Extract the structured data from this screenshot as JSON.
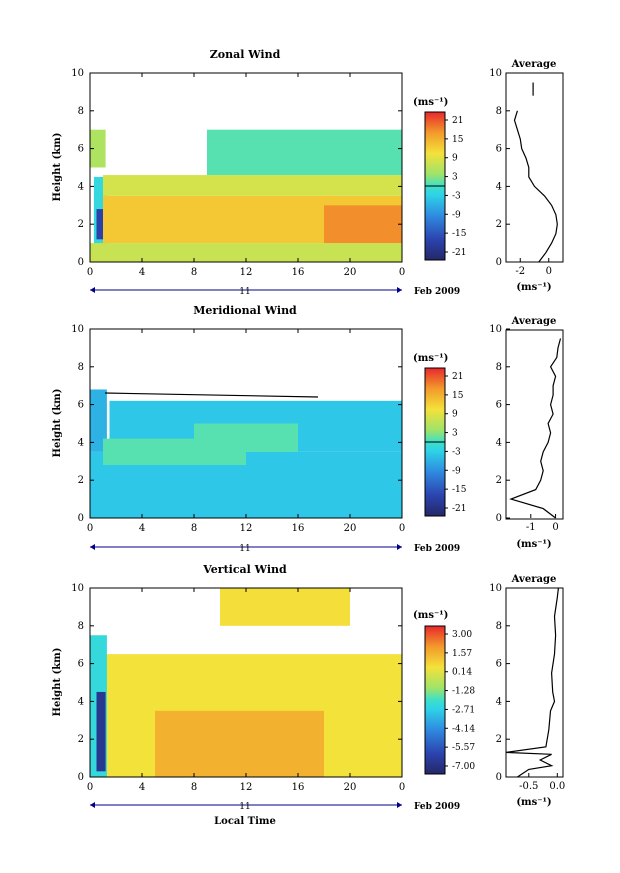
{
  "chart_data": [
    {
      "id": "zonal",
      "type": "heatmap",
      "title": "Zonal Wind",
      "ylabel": "Height (km)",
      "xlabel": "",
      "x_ticks": [
        "0",
        "4",
        "8",
        "12",
        "16",
        "20",
        "0"
      ],
      "y_ticks": [
        "0",
        "2",
        "4",
        "6",
        "8",
        "10"
      ],
      "xlim": [
        0,
        24
      ],
      "ylim": [
        0,
        10
      ],
      "day_label": "11",
      "date_label": "Feb 2009",
      "colorbar": {
        "unit": "(ms⁻¹)",
        "ticks": [
          "21",
          "15",
          "9",
          "3",
          "-3",
          "-9",
          "-15",
          "-21"
        ],
        "range": [
          -24,
          24
        ]
      },
      "average": {
        "title": "Average",
        "unit": "(ms⁻¹)",
        "x_ticks": [
          "-2",
          "0"
        ],
        "xlim": [
          -3,
          1
        ],
        "y_ticks": [
          "0",
          "2",
          "4",
          "6",
          "8",
          "10"
        ],
        "profile": [
          [
            -0.7,
            0.0
          ],
          [
            -0.2,
            0.5
          ],
          [
            0.2,
            1.0
          ],
          [
            0.5,
            1.5
          ],
          [
            0.6,
            2.0
          ],
          [
            0.5,
            2.5
          ],
          [
            0.2,
            3.0
          ],
          [
            -0.3,
            3.5
          ],
          [
            -1.0,
            4.0
          ],
          [
            -1.4,
            4.5
          ],
          [
            -1.4,
            5.0
          ],
          [
            -1.6,
            5.5
          ],
          [
            -1.9,
            6.0
          ],
          [
            -2.0,
            6.5
          ],
          [
            -2.2,
            7.0
          ],
          [
            -2.4,
            7.5
          ],
          [
            -2.2,
            8.0
          ]
        ],
        "profile_upper": [
          [
            -1.1,
            8.8
          ],
          [
            -1.1,
            9.5
          ]
        ]
      },
      "patches": [
        {
          "t0": 0.3,
          "t1": 1.4,
          "h0": 0.0,
          "h1": 4.5,
          "value": -2
        },
        {
          "t0": 0.5,
          "t1": 1.1,
          "h0": 1.2,
          "h1": 2.8,
          "value": -18
        },
        {
          "t0": 0.0,
          "t1": 24.0,
          "h0": 0.0,
          "h1": 1.0,
          "value": 7
        },
        {
          "t0": 1.0,
          "t1": 24.0,
          "h0": 1.0,
          "h1": 3.5,
          "value": 13
        },
        {
          "t0": 18.0,
          "t1": 24.0,
          "h0": 1.0,
          "h1": 3.0,
          "value": 18
        },
        {
          "t0": 1.0,
          "t1": 24.0,
          "h0": 3.5,
          "h1": 4.6,
          "value": 8
        },
        {
          "t0": 9.0,
          "t1": 24.0,
          "h0": 4.6,
          "h1": 7.0,
          "value": 1
        },
        {
          "t0": 0.0,
          "t1": 1.2,
          "h0": 5.0,
          "h1": 7.0,
          "value": 5
        }
      ]
    },
    {
      "id": "meridional",
      "type": "heatmap",
      "title": "Meridional Wind",
      "ylabel": "Height (km)",
      "xlabel": "",
      "x_ticks": [
        "0",
        "4",
        "8",
        "12",
        "16",
        "20",
        "0"
      ],
      "y_ticks": [
        "0",
        "2",
        "4",
        "6",
        "8",
        "10"
      ],
      "xlim": [
        0,
        24
      ],
      "ylim": [
        0,
        10
      ],
      "day_label": "11",
      "date_label": "Feb 2009",
      "colorbar": {
        "unit": "(ms⁻¹)",
        "ticks": [
          "21",
          "15",
          "9",
          "3",
          "-3",
          "-9",
          "-15",
          "-21"
        ],
        "range": [
          -24,
          24
        ]
      },
      "average": {
        "title": "Average",
        "unit": "(ms⁻¹)",
        "x_ticks": [
          "-1",
          "0"
        ],
        "xlim": [
          -2,
          0.3
        ],
        "y_ticks": [
          "0",
          "2",
          "4",
          "6",
          "8",
          "10"
        ],
        "profile": [
          [
            0.0,
            0.0
          ],
          [
            -0.5,
            0.5
          ],
          [
            -1.8,
            1.0
          ],
          [
            -0.8,
            1.5
          ],
          [
            -0.6,
            2.0
          ],
          [
            -0.5,
            2.5
          ],
          [
            -0.6,
            3.0
          ],
          [
            -0.5,
            3.5
          ],
          [
            -0.3,
            4.0
          ],
          [
            -0.2,
            4.5
          ],
          [
            -0.3,
            5.0
          ],
          [
            -0.1,
            5.5
          ],
          [
            -0.2,
            6.0
          ],
          [
            -0.1,
            6.5
          ],
          [
            -0.1,
            7.0
          ],
          [
            0.0,
            7.5
          ],
          [
            -0.2,
            8.0
          ],
          [
            0.05,
            8.5
          ],
          [
            0.1,
            9.0
          ],
          [
            0.2,
            9.5
          ]
        ],
        "profile_upper": []
      },
      "patches": [
        {
          "t0": 0.0,
          "t1": 24.0,
          "h0": 0.0,
          "h1": 3.5,
          "value": -4
        },
        {
          "t0": 0.0,
          "t1": 1.3,
          "h0": 3.5,
          "h1": 6.8,
          "value": -6
        },
        {
          "t0": 1.5,
          "t1": 24.0,
          "h0": 3.5,
          "h1": 6.2,
          "value": -4
        },
        {
          "t0": 1.0,
          "t1": 12.0,
          "h0": 2.8,
          "h1": 4.2,
          "value": 1
        },
        {
          "t0": 8.0,
          "t1": 16.0,
          "h0": 3.5,
          "h1": 5.0,
          "value": 1
        }
      ]
    },
    {
      "id": "vertical",
      "type": "heatmap",
      "title": "Vertical Wind",
      "ylabel": "Height (km)",
      "xlabel": "Local Time",
      "x_ticks": [
        "0",
        "4",
        "8",
        "12",
        "16",
        "20",
        "0"
      ],
      "y_ticks": [
        "0",
        "2",
        "4",
        "6",
        "8",
        "10"
      ],
      "xlim": [
        0,
        24
      ],
      "ylim": [
        0,
        10
      ],
      "day_label": "11",
      "date_label": "Feb 2009",
      "colorbar": {
        "unit": "(ms⁻¹)",
        "ticks": [
          "3.00",
          "1.57",
          "0.14",
          "-1.28",
          "-2.71",
          "-4.14",
          "-5.57",
          "-7.00"
        ],
        "range": [
          -7.71,
          3.71
        ]
      },
      "average": {
        "title": "Average",
        "unit": "(ms⁻¹)",
        "x_ticks": [
          "-0.5",
          "0.0"
        ],
        "xlim": [
          -0.9,
          0.1
        ],
        "y_ticks": [
          "0",
          "2",
          "4",
          "6",
          "8",
          "10"
        ],
        "profile": [
          [
            -0.7,
            0.0
          ],
          [
            -0.5,
            0.4
          ],
          [
            -0.1,
            0.6
          ],
          [
            -0.3,
            0.9
          ],
          [
            -0.1,
            1.2
          ],
          [
            -0.9,
            1.3
          ],
          [
            -0.2,
            1.6
          ],
          [
            -0.15,
            2.5
          ],
          [
            -0.12,
            3.5
          ],
          [
            -0.05,
            4.0
          ],
          [
            -0.08,
            4.5
          ],
          [
            -0.1,
            5.5
          ],
          [
            -0.05,
            6.5
          ],
          [
            -0.03,
            7.5
          ],
          [
            -0.05,
            8.5
          ],
          [
            0.0,
            9.5
          ],
          [
            0.02,
            10.0
          ]
        ],
        "profile_upper": []
      },
      "patches": [
        {
          "t0": 0.0,
          "t1": 24.0,
          "h0": 0.0,
          "h1": 6.5,
          "value": 0.5
        },
        {
          "t0": 5.0,
          "t1": 18.0,
          "h0": 0.0,
          "h1": 3.5,
          "value": 1.6
        },
        {
          "t0": 0.0,
          "t1": 1.3,
          "h0": 0.0,
          "h1": 7.5,
          "value": -2.4
        },
        {
          "t0": 0.5,
          "t1": 1.2,
          "h0": 0.3,
          "h1": 4.5,
          "value": -6.8
        },
        {
          "t0": 10.0,
          "t1": 20.0,
          "h0": 8.0,
          "h1": 10.0,
          "value": 0.6
        }
      ]
    }
  ]
}
